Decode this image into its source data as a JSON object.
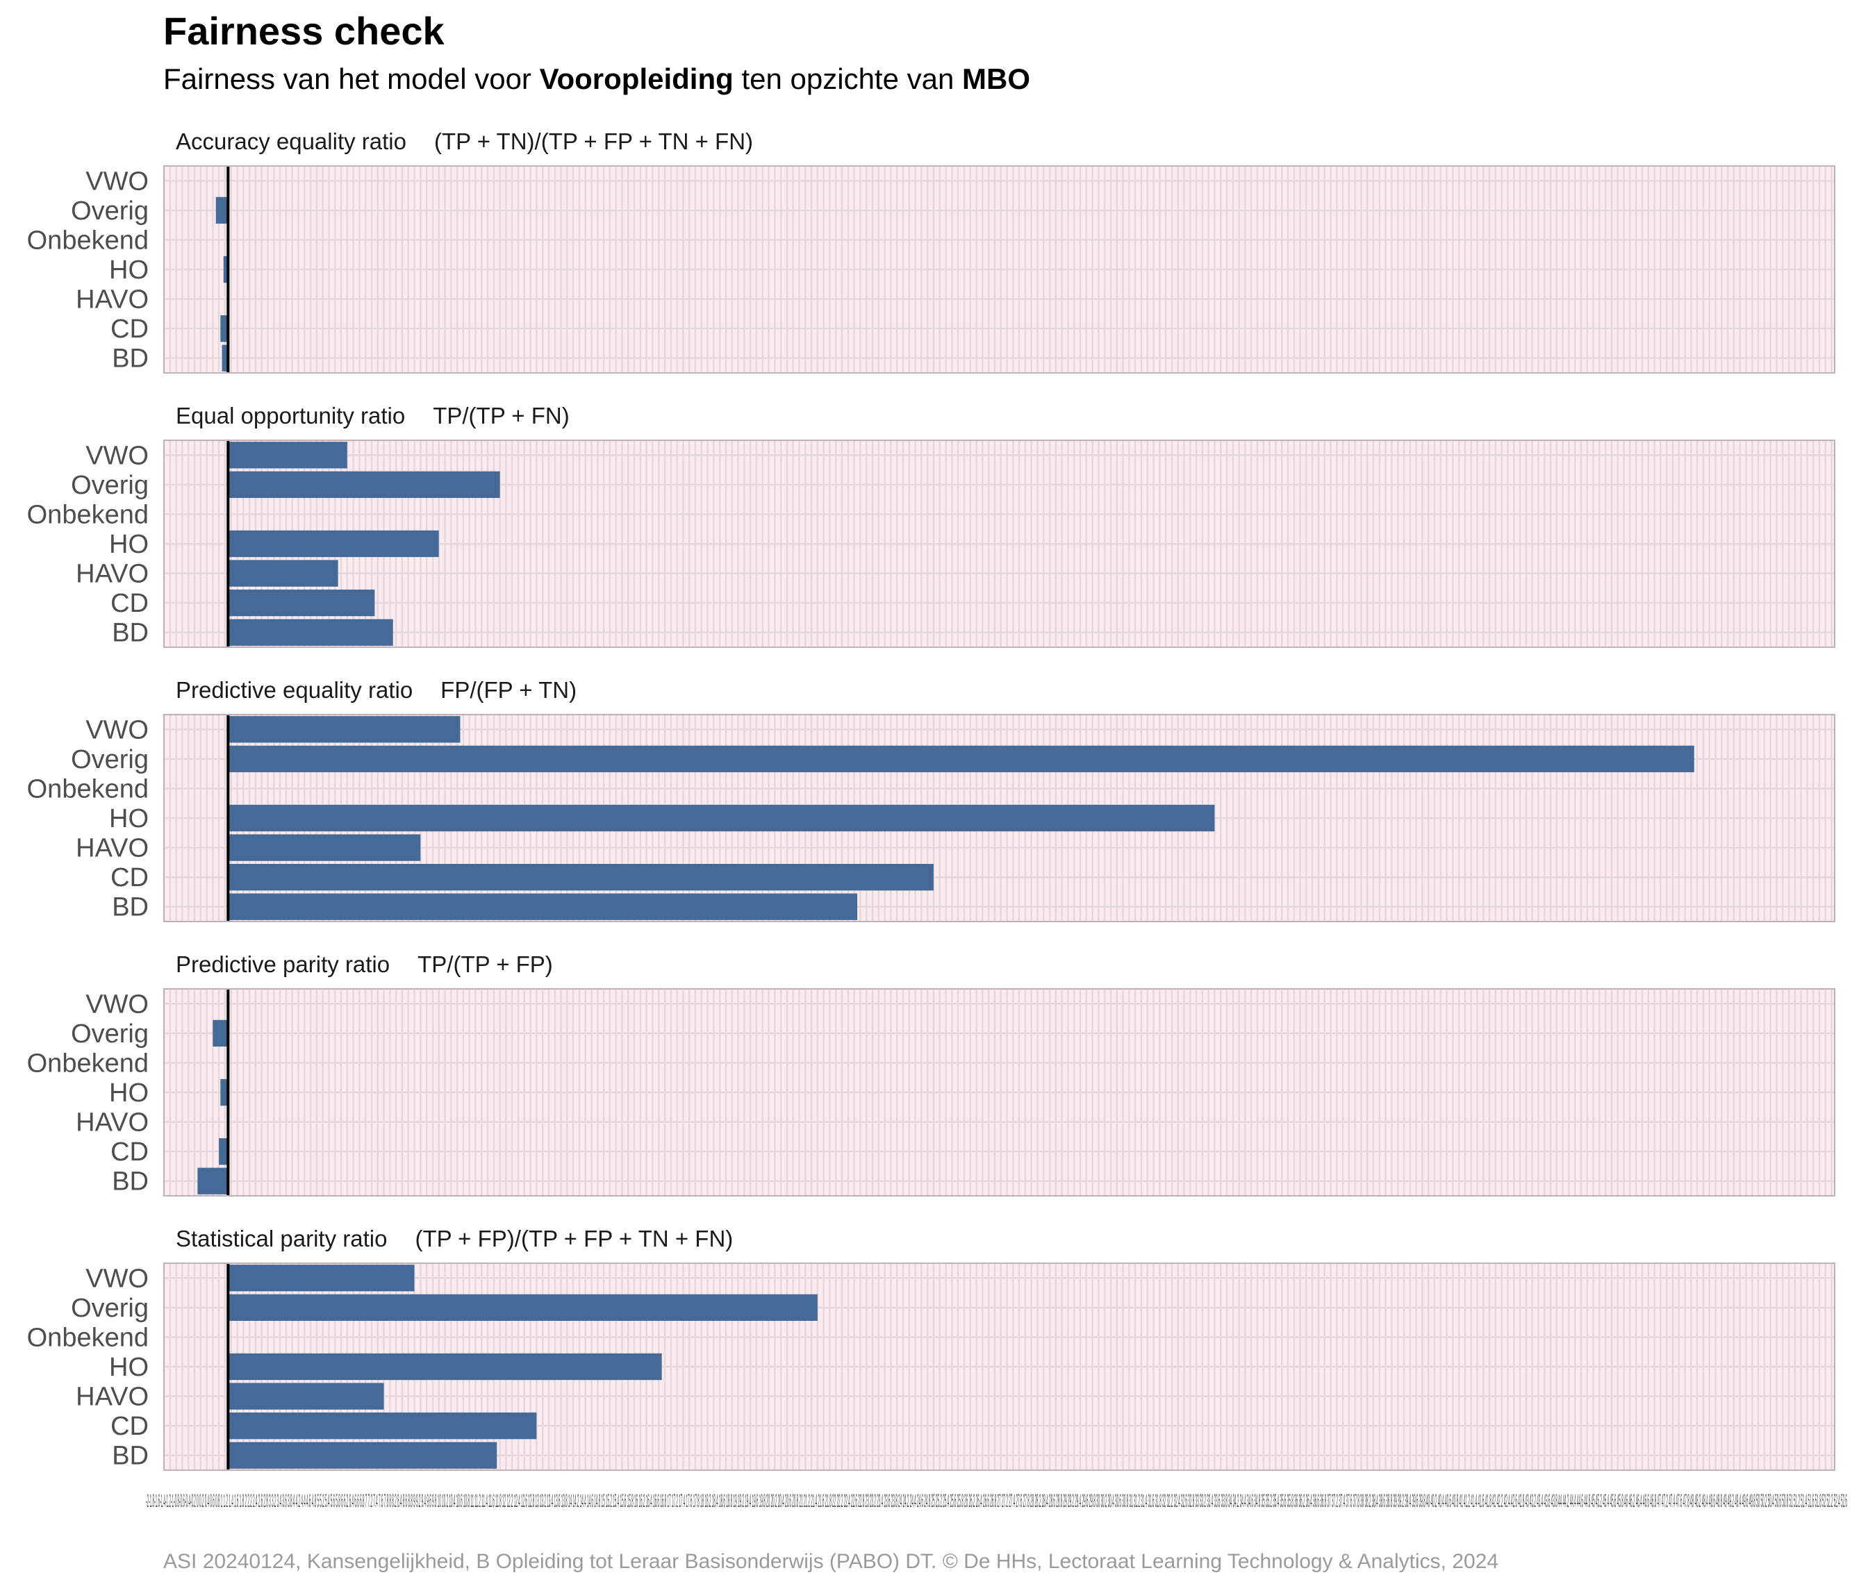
{
  "header": {
    "title": "Fairness check",
    "subtitle_prefix": "Fairness van het model voor ",
    "subtitle_var": "Vooropleiding",
    "subtitle_mid": " ten opzichte van ",
    "subtitle_ref": "MBO"
  },
  "caption": "ASI 20240124, Kansengelijkheid, B Opleiding tot Leraar Basisonderwijs (PABO) DT. © De HHs, Lectoraat Learning Technology & Analytics, 2024",
  "colors": {
    "panel_bg": "#fbeaee",
    "grid": "#e3d9dd",
    "bar": "#466a97",
    "reference_line": "#000000",
    "border": "#bdb3b7"
  },
  "chart_data": {
    "type": "bar",
    "orientation": "horizontal",
    "reference_group": "MBO",
    "categories": [
      "VWO",
      "Overig",
      "Onbekend",
      "HO",
      "HAVO",
      "CD",
      "BD"
    ],
    "xlim": [
      -2.1,
      52.6
    ],
    "x_tick_text": "-2-1.8-1.6-1.4-1.2-1-0.8-0.6-0.4-0.2 0 0.2 0.4 0.6 0.8 1 1.2 1.4 1.6 1.8 2 2.2 2.4 2.6 2.8 3 3.2 3.4 3.6 3.8 4 4.2 4.4 4.6 4.8 5 5.2 5.4 5.6 5.8 6 6.2 6.4 6.6 6.8 7 7.2 7.4 7.6 7.8 8 8.2 8.4 8.6 8.8 9 9.2 9.4 9.6 9.8 10 10.2 10.4 10.6 10.8 11 11.2 11.4 11.6 11.8 12 12.2 12.4 12.6 12.8 13 13.2 13.4 13.6 13.8 14 14.2 14.4 14.6 14.8 15 15.2 15.4 15.6 15.8 16 16.2 16.4 16.6 16.8 17 17.2 17.4 17.6 17.8 18 18.2 18.4 18.6 18.8 19 19.2 19.4 19.6 19.8 20 20.2 20.4 20.6 20.8 21 21.2 21.4 21.6 21.8 22 22.2 22.4 22.6 22.8 23 23.2 23.4 23.6 23.8 24 24.2 24.4 24.6 24.8 25 25.2 25.4 25.6 25.8 26 26.2 26.4 26.6 26.8 27 27.2 27.4 27.6 27.8 28 28.2 28.4 28.6 28.8 29 29.2 29.4 29.6 29.8 30 30.2 30.4 30.6 30.8 31 31.2 31.4 31.6 31.8 32 32.2 32.4 32.6 32.8 33 33.2 33.4 33.6 33.8 34 34.2 34.4 34.6 34.8 35 35.2 35.4 35.6 35.8 36 36.2 36.4 36.6 36.8 37 37.2 37.4 37.6 37.8 38 38.2 38.4 38.6 38.8 39 39.2 39.4 39.6 39.8 40 40.2 40.4 40.6 40.8 41 41.2 41.4 41.6 41.8 42 42.2 42.4 42.6 42.8 43 43.2 43.4 43.6 43.8 44 44.2 44.4 44.6 44.8 45 45.2 45.4 45.6 45.8 46 46.2 46.4 46.6 46.8 47 47.2 47.4 47.6 47.8 48 48.2 48.4 48.6 48.8 49 49.2 49.4 49.6 49.8 50 50.2 50.4 50.6 50.8 51 51.2 51.4 51.6 51.8 52 52.2 52.4 52.6",
    "panels": [
      {
        "title": "Accuracy equality ratio",
        "formula": "(TP + TN)/(TP + FP + TN + FN)",
        "values": [
          0,
          -0.4,
          0,
          -0.15,
          0,
          -0.25,
          -0.2
        ]
      },
      {
        "title": "Equal opportunity ratio",
        "formula": "TP/(TP + FN)",
        "values": [
          3.9,
          8.9,
          0,
          6.9,
          3.6,
          4.8,
          5.4
        ]
      },
      {
        "title": "Predictive equality ratio",
        "formula": "FP/(FP + TN)",
        "values": [
          7.6,
          48.0,
          0,
          32.3,
          6.3,
          23.1,
          20.6
        ]
      },
      {
        "title": "Predictive parity ratio",
        "formula": "TP/(TP + FP)",
        "values": [
          0,
          -0.5,
          0,
          -0.25,
          0,
          -0.3,
          -1.0
        ]
      },
      {
        "title": "Statistical parity ratio",
        "formula": "(TP + FP)/(TP + FP + TN + FN)",
        "values": [
          6.1,
          19.3,
          0,
          14.2,
          5.1,
          10.1,
          8.8
        ]
      }
    ]
  }
}
